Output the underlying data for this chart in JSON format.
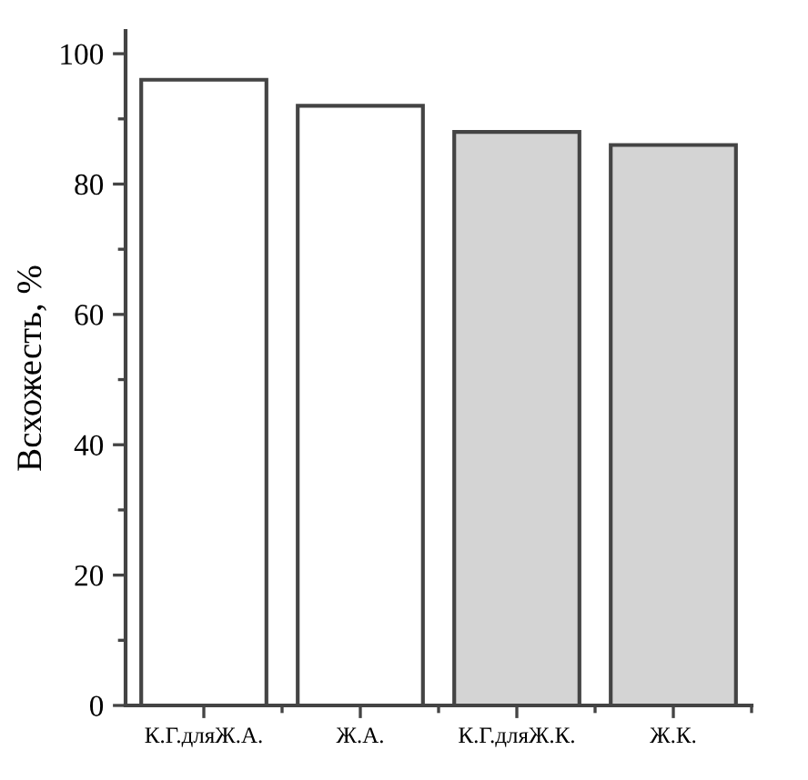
{
  "chart_data": {
    "type": "bar",
    "ylabel": "Всхожесть, %",
    "categories": [
      "К.Г.дляЖ.А.",
      "Ж.А.",
      "К.Г.дляЖ.К.",
      "Ж.К."
    ],
    "values": [
      96,
      92,
      88,
      86
    ],
    "colors": [
      "#ffffff",
      "#ffffff",
      "#d4d4d4",
      "#d4d4d4"
    ],
    "ylim": [
      0,
      103.5
    ],
    "yticks": [
      0,
      20,
      40,
      60,
      80,
      100
    ],
    "grid": false,
    "legend": false
  }
}
